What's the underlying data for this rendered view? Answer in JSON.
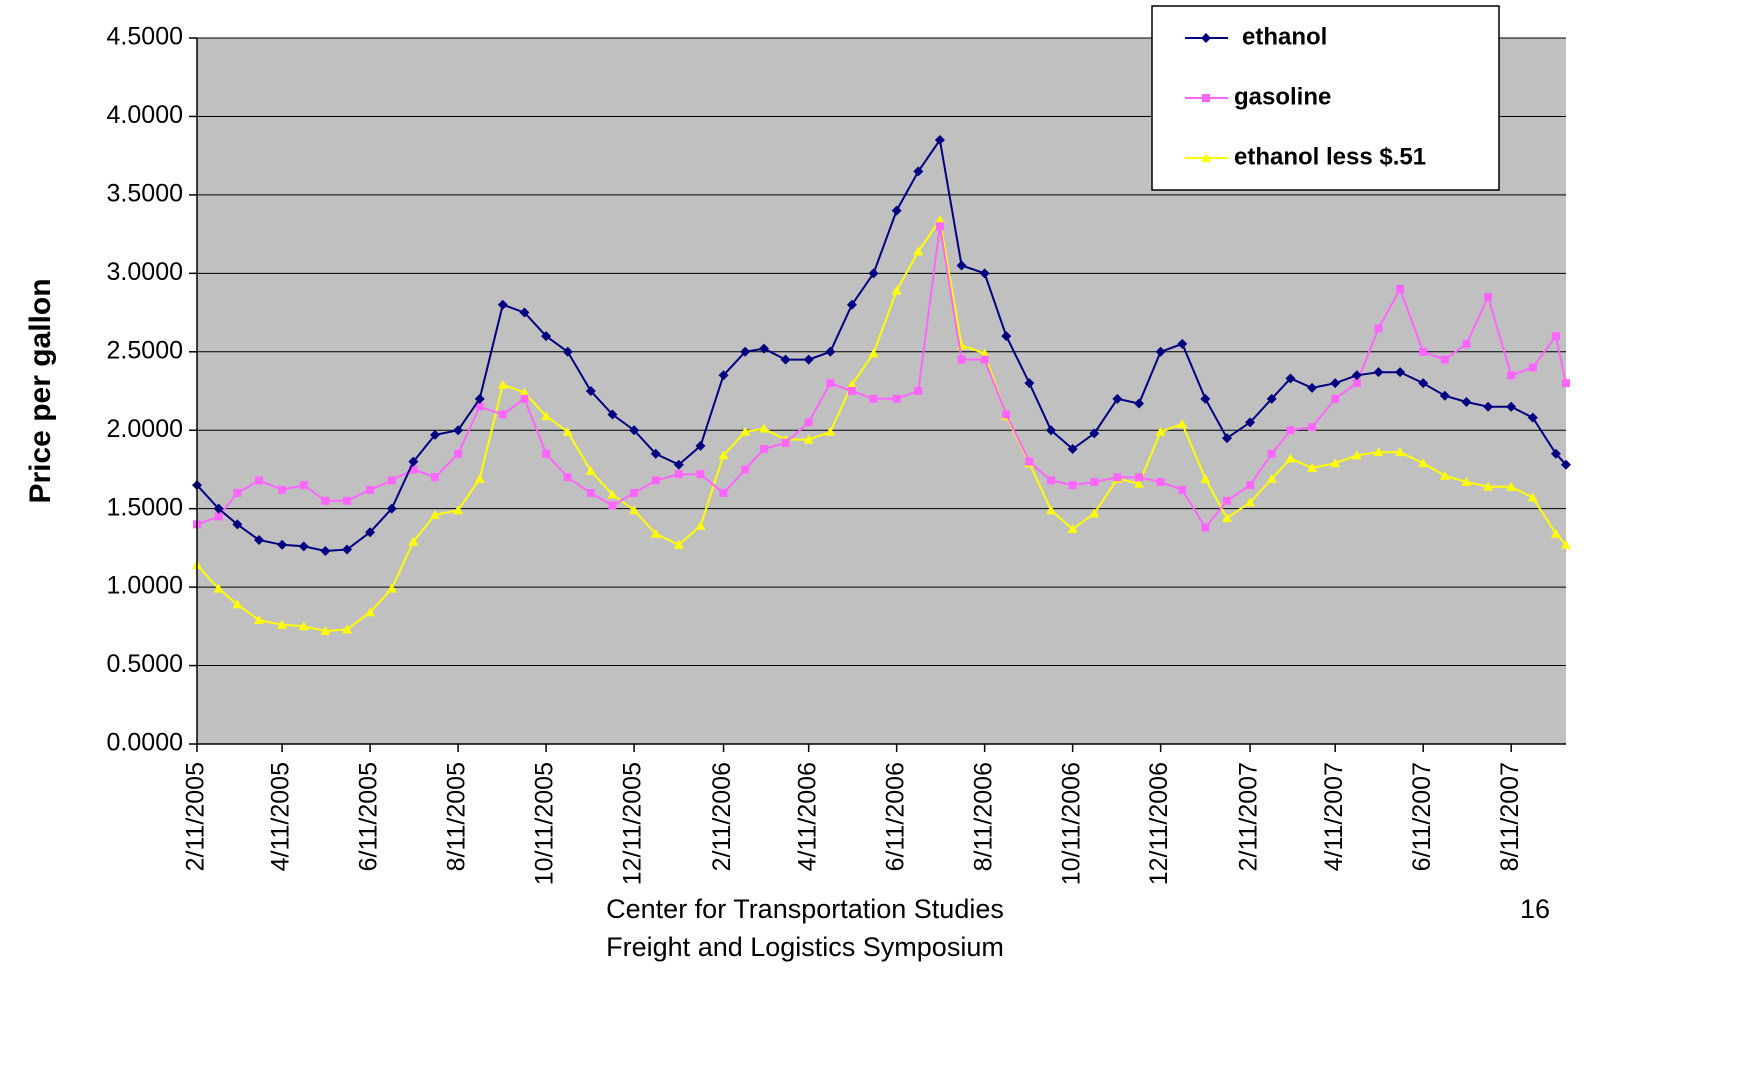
{
  "chart_data": {
    "type": "line",
    "ylabel": "Price per gallon",
    "x": [
      "2005-02-11",
      "2005-02-26",
      "2005-03-11",
      "2005-03-26",
      "2005-04-11",
      "2005-04-26",
      "2005-05-11",
      "2005-05-26",
      "2005-06-11",
      "2005-06-26",
      "2005-07-11",
      "2005-07-26",
      "2005-08-11",
      "2005-08-26",
      "2005-09-11",
      "2005-09-26",
      "2005-10-11",
      "2005-10-26",
      "2005-11-11",
      "2005-11-26",
      "2005-12-11",
      "2005-12-26",
      "2006-01-11",
      "2006-01-26",
      "2006-02-11",
      "2006-02-26",
      "2006-03-11",
      "2006-03-26",
      "2006-04-11",
      "2006-04-26",
      "2006-05-11",
      "2006-05-26",
      "2006-06-11",
      "2006-06-26",
      "2006-07-11",
      "2006-07-26",
      "2006-08-11",
      "2006-08-26",
      "2006-09-11",
      "2006-09-26",
      "2006-10-11",
      "2006-10-26",
      "2006-11-11",
      "2006-11-26",
      "2006-12-11",
      "2006-12-26",
      "2007-01-11",
      "2007-01-26",
      "2007-02-11",
      "2007-02-26",
      "2007-03-11",
      "2007-03-26",
      "2007-04-11",
      "2007-04-26",
      "2007-05-11",
      "2007-05-26",
      "2007-06-11",
      "2007-06-26",
      "2007-07-11",
      "2007-07-26",
      "2007-08-11",
      "2007-08-26",
      "2007-09-11",
      "2007-09-18"
    ],
    "series": [
      {
        "name": "ethanol",
        "color": "#000080",
        "marker": "diamond",
        "values": [
          1.65,
          1.5,
          1.4,
          1.3,
          1.27,
          1.26,
          1.23,
          1.24,
          1.35,
          1.5,
          1.8,
          1.97,
          2.0,
          2.2,
          2.8,
          2.75,
          2.6,
          2.5,
          2.25,
          2.1,
          2.0,
          1.85,
          1.78,
          1.9,
          2.35,
          2.5,
          2.52,
          2.45,
          2.45,
          2.5,
          2.8,
          3.0,
          3.4,
          3.65,
          3.85,
          3.05,
          3.0,
          2.6,
          2.3,
          2.0,
          1.88,
          1.98,
          2.2,
          2.17,
          2.5,
          2.55,
          2.2,
          1.95,
          2.05,
          2.2,
          2.33,
          2.27,
          2.3,
          2.35,
          2.37,
          2.37,
          2.3,
          2.22,
          2.18,
          2.15,
          2.15,
          2.08,
          1.85,
          1.78
        ]
      },
      {
        "name": "gasoline",
        "color": "#ff66ff",
        "marker": "square",
        "values": [
          1.4,
          1.45,
          1.6,
          1.68,
          1.62,
          1.65,
          1.55,
          1.55,
          1.62,
          1.68,
          1.75,
          1.7,
          1.85,
          2.15,
          2.1,
          2.2,
          1.85,
          1.7,
          1.6,
          1.52,
          1.6,
          1.68,
          1.72,
          1.72,
          1.6,
          1.75,
          1.88,
          1.92,
          2.05,
          2.3,
          2.25,
          2.2,
          2.2,
          2.25,
          3.3,
          2.45,
          2.45,
          2.1,
          1.8,
          1.68,
          1.65,
          1.67,
          1.7,
          1.7,
          1.67,
          1.62,
          1.38,
          1.55,
          1.65,
          1.85,
          2.0,
          2.02,
          2.2,
          2.3,
          2.65,
          2.9,
          2.5,
          2.45,
          2.55,
          2.85,
          2.35,
          2.4,
          2.6,
          2.3
        ]
      },
      {
        "name": "ethanol less $.51",
        "color": "#ffff00",
        "marker": "triangle",
        "values": [
          1.14,
          0.99,
          0.89,
          0.79,
          0.76,
          0.75,
          0.72,
          0.73,
          0.84,
          0.99,
          1.29,
          1.46,
          1.49,
          1.69,
          2.29,
          2.24,
          2.09,
          1.99,
          1.74,
          1.59,
          1.49,
          1.34,
          1.27,
          1.39,
          1.84,
          1.99,
          2.01,
          1.94,
          1.94,
          1.99,
          2.29,
          2.49,
          2.89,
          3.14,
          3.34,
          2.54,
          2.49,
          2.09,
          1.79,
          1.49,
          1.37,
          1.47,
          1.69,
          1.66,
          1.99,
          2.04,
          1.69,
          1.44,
          1.54,
          1.69,
          1.82,
          1.76,
          1.79,
          1.84,
          1.86,
          1.86,
          1.79,
          1.71,
          1.67,
          1.64,
          1.64,
          1.57,
          1.34,
          1.27
        ]
      }
    ],
    "xlim": [
      "2005-02-11",
      "2007-09-18"
    ],
    "xticks": [
      {
        "value": "2005-02-11",
        "label": "2/11/2005"
      },
      {
        "value": "2005-04-11",
        "label": "4/11/2005"
      },
      {
        "value": "2005-06-11",
        "label": "6/11/2005"
      },
      {
        "value": "2005-08-11",
        "label": "8/11/2005"
      },
      {
        "value": "2005-10-11",
        "label": "10/11/2005"
      },
      {
        "value": "2005-12-11",
        "label": "12/11/2005"
      },
      {
        "value": "2006-02-11",
        "label": "2/11/2006"
      },
      {
        "value": "2006-04-11",
        "label": "4/11/2006"
      },
      {
        "value": "2006-06-11",
        "label": "6/11/2006"
      },
      {
        "value": "2006-08-11",
        "label": "8/11/2006"
      },
      {
        "value": "2006-10-11",
        "label": "10/11/2006"
      },
      {
        "value": "2006-12-11",
        "label": "12/11/2006"
      },
      {
        "value": "2007-02-11",
        "label": "2/11/2007"
      },
      {
        "value": "2007-04-11",
        "label": "4/11/2007"
      },
      {
        "value": "2007-06-11",
        "label": "6/11/2007"
      },
      {
        "value": "2007-08-11",
        "label": "8/11/2007"
      }
    ],
    "ylim": [
      0,
      4.5
    ],
    "yticks": [
      {
        "value": 0,
        "label": "0.0000"
      },
      {
        "value": 0.5,
        "label": "0.5000"
      },
      {
        "value": 1,
        "label": "1.0000"
      },
      {
        "value": 1.5,
        "label": "1.5000"
      },
      {
        "value": 2,
        "label": "2.0000"
      },
      {
        "value": 2.5,
        "label": "2.5000"
      },
      {
        "value": 3,
        "label": "3.0000"
      },
      {
        "value": 3.5,
        "label": "3.5000"
      },
      {
        "value": 4,
        "label": "4.0000"
      },
      {
        "value": 4.5,
        "label": "4.5000"
      }
    ],
    "grid": true,
    "legend": "top-right"
  },
  "footer": {
    "line1": "Center for Transportation Studies",
    "line2": "Freight and Logistics Symposium",
    "page": "16"
  }
}
